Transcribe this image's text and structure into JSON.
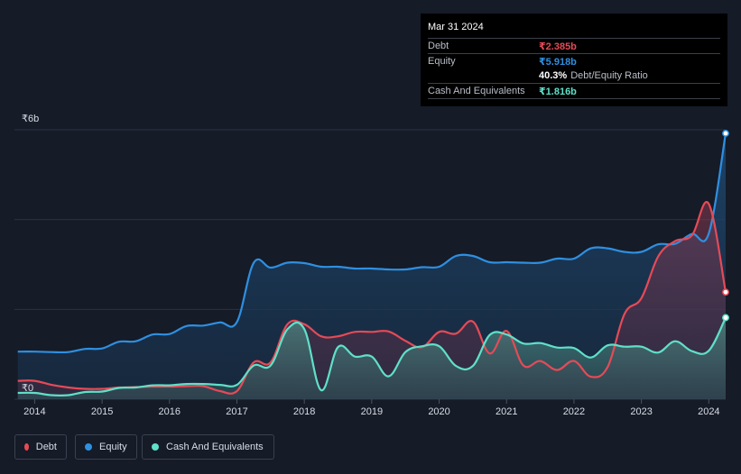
{
  "tooltip": {
    "date": "Mar 31 2024",
    "debt_label": "Debt",
    "debt_value": "₹2.385b",
    "equity_label": "Equity",
    "equity_value": "₹5.918b",
    "ratio_value": "40.3%",
    "ratio_label": "Debt/Equity Ratio",
    "cash_label": "Cash And Equivalents",
    "cash_value": "₹1.816b"
  },
  "legend": [
    {
      "name": "Debt",
      "color": "#e64a57"
    },
    {
      "name": "Equity",
      "color": "#2f8fe0"
    },
    {
      "name": "Cash And Equivalents",
      "color": "#5fe0c8"
    }
  ],
  "colors": {
    "debt": "#e64a57",
    "equity": "#2f8fe0",
    "cash": "#5fe0c8",
    "background": "#151b27",
    "grid": "#2c3340"
  },
  "chart_data": {
    "type": "area",
    "y_unit": "₹ billions",
    "ylim": [
      0,
      6
    ],
    "y_tick_labels": [
      {
        "value": 6,
        "label": "₹6b"
      },
      {
        "value": 0,
        "label": "₹0"
      }
    ],
    "gridlines": [
      0,
      2,
      4,
      6
    ],
    "xlim": [
      2013.7,
      2024.25
    ],
    "x_ticks": [
      2014,
      2015,
      2016,
      2017,
      2018,
      2019,
      2020,
      2021,
      2022,
      2023,
      2024
    ],
    "legend_position": "bottom-left",
    "series": [
      {
        "name": "Equity",
        "key": "equity",
        "points": [
          [
            2013.75,
            1.06
          ],
          [
            2014.0,
            1.06
          ],
          [
            2014.25,
            1.05
          ],
          [
            2014.5,
            1.05
          ],
          [
            2014.75,
            1.12
          ],
          [
            2015.0,
            1.13
          ],
          [
            2015.25,
            1.28
          ],
          [
            2015.5,
            1.29
          ],
          [
            2015.75,
            1.44
          ],
          [
            2016.0,
            1.45
          ],
          [
            2016.25,
            1.63
          ],
          [
            2016.5,
            1.64
          ],
          [
            2016.75,
            1.71
          ],
          [
            2017.0,
            1.72
          ],
          [
            2017.25,
            3.04
          ],
          [
            2017.5,
            2.93
          ],
          [
            2017.75,
            3.04
          ],
          [
            2018.0,
            3.03
          ],
          [
            2018.25,
            2.95
          ],
          [
            2018.5,
            2.95
          ],
          [
            2018.75,
            2.91
          ],
          [
            2019.0,
            2.91
          ],
          [
            2019.25,
            2.89
          ],
          [
            2019.5,
            2.89
          ],
          [
            2019.75,
            2.94
          ],
          [
            2020.0,
            2.95
          ],
          [
            2020.25,
            3.19
          ],
          [
            2020.5,
            3.19
          ],
          [
            2020.75,
            3.05
          ],
          [
            2021.0,
            3.05
          ],
          [
            2021.25,
            3.04
          ],
          [
            2021.5,
            3.04
          ],
          [
            2021.75,
            3.13
          ],
          [
            2022.0,
            3.13
          ],
          [
            2022.25,
            3.36
          ],
          [
            2022.5,
            3.36
          ],
          [
            2022.75,
            3.28
          ],
          [
            2023.0,
            3.28
          ],
          [
            2023.25,
            3.45
          ],
          [
            2023.5,
            3.46
          ],
          [
            2023.75,
            3.68
          ],
          [
            2024.0,
            3.69
          ],
          [
            2024.25,
            5.92
          ]
        ]
      },
      {
        "name": "Debt",
        "key": "debt",
        "points": [
          [
            2013.75,
            0.41
          ],
          [
            2014.0,
            0.41
          ],
          [
            2014.25,
            0.32
          ],
          [
            2014.5,
            0.26
          ],
          [
            2014.75,
            0.23
          ],
          [
            2015.0,
            0.23
          ],
          [
            2015.25,
            0.26
          ],
          [
            2015.5,
            0.27
          ],
          [
            2015.75,
            0.28
          ],
          [
            2016.0,
            0.28
          ],
          [
            2016.25,
            0.29
          ],
          [
            2016.5,
            0.29
          ],
          [
            2016.75,
            0.18
          ],
          [
            2017.0,
            0.18
          ],
          [
            2017.25,
            0.82
          ],
          [
            2017.5,
            0.82
          ],
          [
            2017.75,
            1.67
          ],
          [
            2018.0,
            1.67
          ],
          [
            2018.25,
            1.4
          ],
          [
            2018.5,
            1.4
          ],
          [
            2018.75,
            1.5
          ],
          [
            2019.0,
            1.5
          ],
          [
            2019.25,
            1.51
          ],
          [
            2019.5,
            1.3
          ],
          [
            2019.75,
            1.16
          ],
          [
            2020.0,
            1.5
          ],
          [
            2020.25,
            1.46
          ],
          [
            2020.5,
            1.73
          ],
          [
            2020.75,
            1.02
          ],
          [
            2021.0,
            1.52
          ],
          [
            2021.25,
            0.75
          ],
          [
            2021.5,
            0.85
          ],
          [
            2021.75,
            0.65
          ],
          [
            2022.0,
            0.85
          ],
          [
            2022.25,
            0.5
          ],
          [
            2022.5,
            0.72
          ],
          [
            2022.75,
            1.9
          ],
          [
            2023.0,
            2.25
          ],
          [
            2023.25,
            3.18
          ],
          [
            2023.5,
            3.52
          ],
          [
            2023.75,
            3.65
          ],
          [
            2024.0,
            4.35
          ],
          [
            2024.25,
            2.385
          ]
        ]
      },
      {
        "name": "Cash And Equivalents",
        "key": "cash",
        "points": [
          [
            2013.75,
            0.14
          ],
          [
            2014.0,
            0.14
          ],
          [
            2014.25,
            0.09
          ],
          [
            2014.5,
            0.09
          ],
          [
            2014.75,
            0.16
          ],
          [
            2015.0,
            0.17
          ],
          [
            2015.25,
            0.25
          ],
          [
            2015.5,
            0.26
          ],
          [
            2015.75,
            0.31
          ],
          [
            2016.0,
            0.31
          ],
          [
            2016.25,
            0.34
          ],
          [
            2016.5,
            0.34
          ],
          [
            2016.75,
            0.32
          ],
          [
            2017.0,
            0.32
          ],
          [
            2017.25,
            0.75
          ],
          [
            2017.5,
            0.75
          ],
          [
            2017.75,
            1.56
          ],
          [
            2018.0,
            1.56
          ],
          [
            2018.25,
            0.2
          ],
          [
            2018.5,
            1.16
          ],
          [
            2018.75,
            0.95
          ],
          [
            2019.0,
            0.95
          ],
          [
            2019.25,
            0.51
          ],
          [
            2019.5,
            1.05
          ],
          [
            2019.75,
            1.18
          ],
          [
            2020.0,
            1.18
          ],
          [
            2020.25,
            0.74
          ],
          [
            2020.5,
            0.74
          ],
          [
            2020.75,
            1.43
          ],
          [
            2021.0,
            1.44
          ],
          [
            2021.25,
            1.24
          ],
          [
            2021.5,
            1.25
          ],
          [
            2021.75,
            1.15
          ],
          [
            2022.0,
            1.14
          ],
          [
            2022.25,
            0.93
          ],
          [
            2022.5,
            1.2
          ],
          [
            2022.75,
            1.17
          ],
          [
            2023.0,
            1.17
          ],
          [
            2023.25,
            1.04
          ],
          [
            2023.5,
            1.29
          ],
          [
            2023.75,
            1.07
          ],
          [
            2024.0,
            1.08
          ],
          [
            2024.25,
            1.816
          ]
        ]
      }
    ]
  }
}
